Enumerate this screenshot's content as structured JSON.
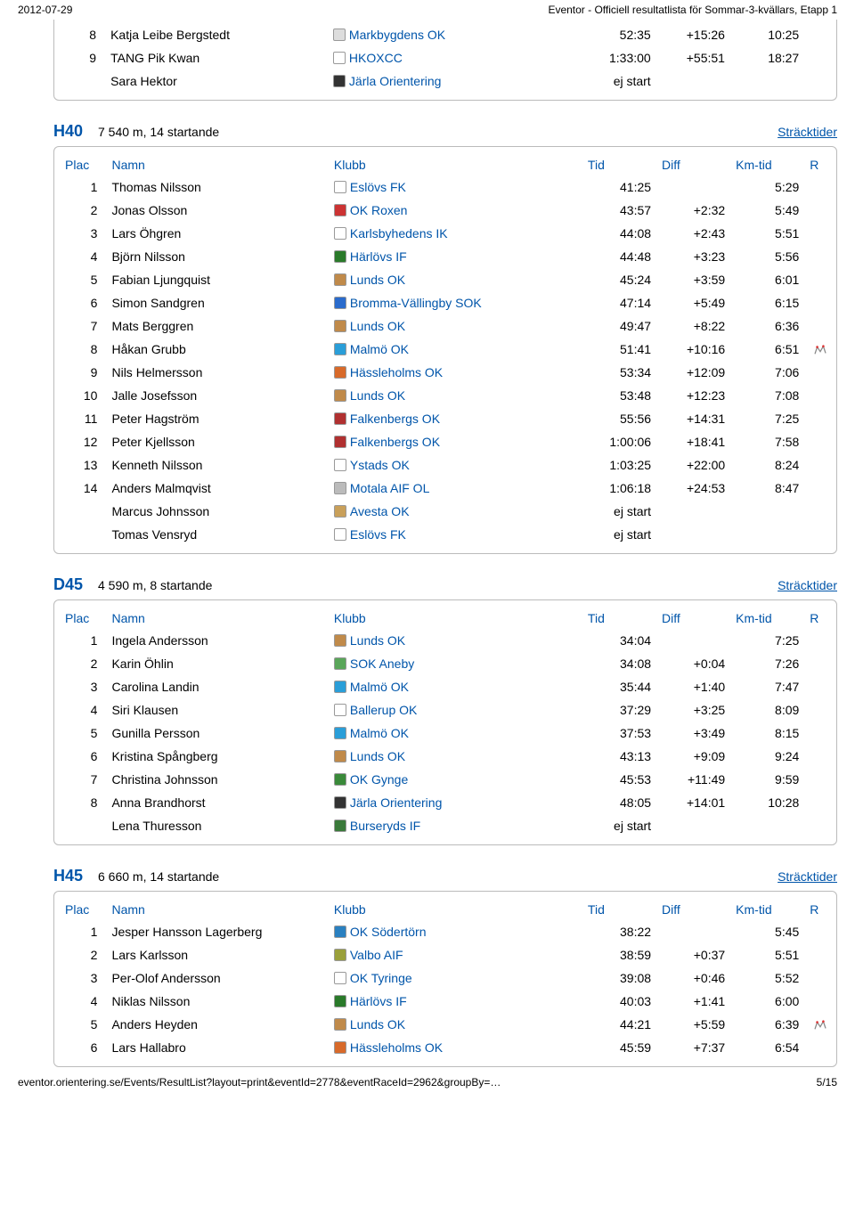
{
  "print_header": {
    "date": "2012-07-29",
    "title": "Eventor - Officiell resultatlista för Sommar-3-kvällars, Etapp 1"
  },
  "print_footer": {
    "url": "eventor.orientering.se/Events/ResultList?layout=print&eventId=2778&eventRaceId=2962&groupBy=…",
    "page": "5/15"
  },
  "labels": {
    "plac": "Plac",
    "namn": "Namn",
    "klubb": "Klubb",
    "tid": "Tid",
    "diff": "Diff",
    "kmtid": "Km-tid",
    "r": "R",
    "stracktider": "Sträcktider"
  },
  "icon_colors": {
    "markbygdens": "#dddddd",
    "hkoxcc": "#ffffff",
    "jarla": "#333333",
    "eslovs": "#ffffff",
    "okroxen": "#cc3333",
    "karlsby": "#ffffff",
    "harlovs": "#2a7a2a",
    "lunds": "#c08a4a",
    "bromma": "#2a6bcc",
    "malmo": "#2a9ed8",
    "hassle": "#d86a2a",
    "falken": "#b03030",
    "ystads": "#ffffff",
    "motala": "#bbbbbb",
    "avesta": "#c9a05a",
    "sokaneby": "#5aa65a",
    "ballerup": "#ffffff",
    "okgynge": "#3a8a3a",
    "burseryd": "#3a7a3a",
    "sodertorn": "#2a80c0",
    "valbo": "#9aa03a",
    "tyringe": "#ffffff"
  },
  "partial_rows": [
    {
      "plac": "8",
      "name": "Katja Leibe Bergstedt",
      "club": "Markbygdens OK",
      "icon": "markbygdens",
      "tid": "52:35",
      "diff": "+15:26",
      "km": "10:25",
      "r": ""
    },
    {
      "plac": "9",
      "name": "TANG Pik Kwan",
      "club": "HKOXCC",
      "icon": "hkoxcc",
      "tid": "1:33:00",
      "diff": "+55:51",
      "km": "18:27",
      "r": ""
    },
    {
      "plac": "",
      "name": "Sara Hektor",
      "club": "Järla Orientering",
      "icon": "jarla",
      "tid": "ej start",
      "diff": "",
      "km": "",
      "r": ""
    }
  ],
  "classes": [
    {
      "code": "H40",
      "info": "7 540 m, 14 startande",
      "rows": [
        {
          "plac": "1",
          "name": "Thomas Nilsson",
          "club": "Eslövs FK",
          "icon": "eslovs",
          "tid": "41:25",
          "diff": "",
          "km": "5:29",
          "r": ""
        },
        {
          "plac": "2",
          "name": "Jonas Olsson",
          "club": "OK Roxen",
          "icon": "okroxen",
          "tid": "43:57",
          "diff": "+2:32",
          "km": "5:49",
          "r": ""
        },
        {
          "plac": "3",
          "name": "Lars Öhgren",
          "club": "Karlsbyhedens IK",
          "icon": "karlsby",
          "tid": "44:08",
          "diff": "+2:43",
          "km": "5:51",
          "r": ""
        },
        {
          "plac": "4",
          "name": "Björn Nilsson",
          "club": "Härlövs IF",
          "icon": "harlovs",
          "tid": "44:48",
          "diff": "+3:23",
          "km": "5:56",
          "r": ""
        },
        {
          "plac": "5",
          "name": "Fabian Ljungquist",
          "club": "Lunds OK",
          "icon": "lunds",
          "tid": "45:24",
          "diff": "+3:59",
          "km": "6:01",
          "r": ""
        },
        {
          "plac": "6",
          "name": "Simon Sandgren",
          "club": "Bromma-Vällingby SOK",
          "icon": "bromma",
          "tid": "47:14",
          "diff": "+5:49",
          "km": "6:15",
          "r": ""
        },
        {
          "plac": "7",
          "name": "Mats Berggren",
          "club": "Lunds OK",
          "icon": "lunds",
          "tid": "49:47",
          "diff": "+8:22",
          "km": "6:36",
          "r": ""
        },
        {
          "plac": "8",
          "name": "Håkan Grubb",
          "club": "Malmö OK",
          "icon": "malmo",
          "tid": "51:41",
          "diff": "+10:16",
          "km": "6:51",
          "r": "map"
        },
        {
          "plac": "9",
          "name": "Nils Helmersson",
          "club": "Hässleholms OK",
          "icon": "hassle",
          "tid": "53:34",
          "diff": "+12:09",
          "km": "7:06",
          "r": ""
        },
        {
          "plac": "10",
          "name": "Jalle Josefsson",
          "club": "Lunds OK",
          "icon": "lunds",
          "tid": "53:48",
          "diff": "+12:23",
          "km": "7:08",
          "r": ""
        },
        {
          "plac": "11",
          "name": "Peter Hagström",
          "club": "Falkenbergs OK",
          "icon": "falken",
          "tid": "55:56",
          "diff": "+14:31",
          "km": "7:25",
          "r": ""
        },
        {
          "plac": "12",
          "name": "Peter Kjellsson",
          "club": "Falkenbergs OK",
          "icon": "falken",
          "tid": "1:00:06",
          "diff": "+18:41",
          "km": "7:58",
          "r": ""
        },
        {
          "plac": "13",
          "name": "Kenneth Nilsson",
          "club": "Ystads OK",
          "icon": "ystads",
          "tid": "1:03:25",
          "diff": "+22:00",
          "km": "8:24",
          "r": ""
        },
        {
          "plac": "14",
          "name": "Anders Malmqvist",
          "club": "Motala AIF OL",
          "icon": "motala",
          "tid": "1:06:18",
          "diff": "+24:53",
          "km": "8:47",
          "r": ""
        },
        {
          "plac": "",
          "name": "Marcus Johnsson",
          "club": "Avesta OK",
          "icon": "avesta",
          "tid": "ej start",
          "diff": "",
          "km": "",
          "r": ""
        },
        {
          "plac": "",
          "name": "Tomas Vensryd",
          "club": "Eslövs FK",
          "icon": "eslovs",
          "tid": "ej start",
          "diff": "",
          "km": "",
          "r": ""
        }
      ]
    },
    {
      "code": "D45",
      "info": "4 590 m, 8 startande",
      "rows": [
        {
          "plac": "1",
          "name": "Ingela Andersson",
          "club": "Lunds OK",
          "icon": "lunds",
          "tid": "34:04",
          "diff": "",
          "km": "7:25",
          "r": ""
        },
        {
          "plac": "2",
          "name": "Karin Öhlin",
          "club": "SOK Aneby",
          "icon": "sokaneby",
          "tid": "34:08",
          "diff": "+0:04",
          "km": "7:26",
          "r": ""
        },
        {
          "plac": "3",
          "name": "Carolina Landin",
          "club": "Malmö OK",
          "icon": "malmo",
          "tid": "35:44",
          "diff": "+1:40",
          "km": "7:47",
          "r": ""
        },
        {
          "plac": "4",
          "name": "Siri Klausen",
          "club": "Ballerup OK",
          "icon": "ballerup",
          "tid": "37:29",
          "diff": "+3:25",
          "km": "8:09",
          "r": ""
        },
        {
          "plac": "5",
          "name": "Gunilla Persson",
          "club": "Malmö OK",
          "icon": "malmo",
          "tid": "37:53",
          "diff": "+3:49",
          "km": "8:15",
          "r": ""
        },
        {
          "plac": "6",
          "name": "Kristina Spångberg",
          "club": "Lunds OK",
          "icon": "lunds",
          "tid": "43:13",
          "diff": "+9:09",
          "km": "9:24",
          "r": ""
        },
        {
          "plac": "7",
          "name": "Christina Johnsson",
          "club": "OK Gynge",
          "icon": "okgynge",
          "tid": "45:53",
          "diff": "+11:49",
          "km": "9:59",
          "r": ""
        },
        {
          "plac": "8",
          "name": "Anna Brandhorst",
          "club": "Järla Orientering",
          "icon": "jarla",
          "tid": "48:05",
          "diff": "+14:01",
          "km": "10:28",
          "r": ""
        },
        {
          "plac": "",
          "name": "Lena Thuresson",
          "club": "Burseryds IF",
          "icon": "burseryd",
          "tid": "ej start",
          "diff": "",
          "km": "",
          "r": ""
        }
      ]
    },
    {
      "code": "H45",
      "info": "6 660 m, 14 startande",
      "rows": [
        {
          "plac": "1",
          "name": "Jesper Hansson Lagerberg",
          "club": "OK Södertörn",
          "icon": "sodertorn",
          "tid": "38:22",
          "diff": "",
          "km": "5:45",
          "r": ""
        },
        {
          "plac": "2",
          "name": "Lars Karlsson",
          "club": "Valbo AIF",
          "icon": "valbo",
          "tid": "38:59",
          "diff": "+0:37",
          "km": "5:51",
          "r": ""
        },
        {
          "plac": "3",
          "name": "Per-Olof Andersson",
          "club": "OK Tyringe",
          "icon": "tyringe",
          "tid": "39:08",
          "diff": "+0:46",
          "km": "5:52",
          "r": ""
        },
        {
          "plac": "4",
          "name": "Niklas Nilsson",
          "club": "Härlövs IF",
          "icon": "harlovs",
          "tid": "40:03",
          "diff": "+1:41",
          "km": "6:00",
          "r": ""
        },
        {
          "plac": "5",
          "name": "Anders Heyden",
          "club": "Lunds OK",
          "icon": "lunds",
          "tid": "44:21",
          "diff": "+5:59",
          "km": "6:39",
          "r": "map"
        },
        {
          "plac": "6",
          "name": "Lars Hallabro",
          "club": "Hässleholms OK",
          "icon": "hassle",
          "tid": "45:59",
          "diff": "+7:37",
          "km": "6:54",
          "r": ""
        }
      ]
    }
  ]
}
